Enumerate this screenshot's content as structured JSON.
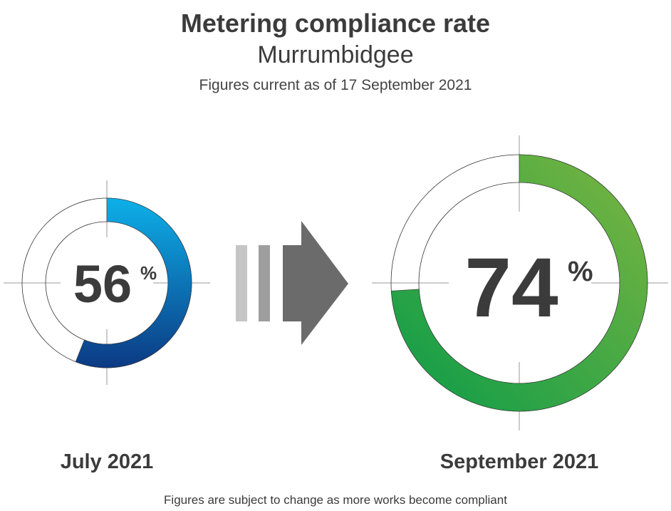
{
  "title": "Metering compliance rate",
  "subtitle": "Murrumbidgee",
  "note": "Figures current as of 17 September 2021",
  "footnote": "Figures are subject to change as more works become compliant",
  "chart_data": {
    "type": "pie",
    "title": "Metering compliance rate",
    "series": [
      {
        "period": "July 2021",
        "value": 56,
        "value_label": "56",
        "unit": "%",
        "colors": [
          "#0db0e9",
          "#0c3a84"
        ]
      },
      {
        "period": "September 2021",
        "value": 74,
        "value_label": "74",
        "unit": "%",
        "colors": [
          "#7cb540",
          "#0b9c49"
        ]
      }
    ],
    "max": 100
  },
  "colors": {
    "text": "#3b3b3b",
    "arrow_dark": "#6b6b6b",
    "arrow_light_1": "#c5c5c5",
    "arrow_light_2": "#9e9e9e",
    "crosshair": "#9a9a9a"
  }
}
